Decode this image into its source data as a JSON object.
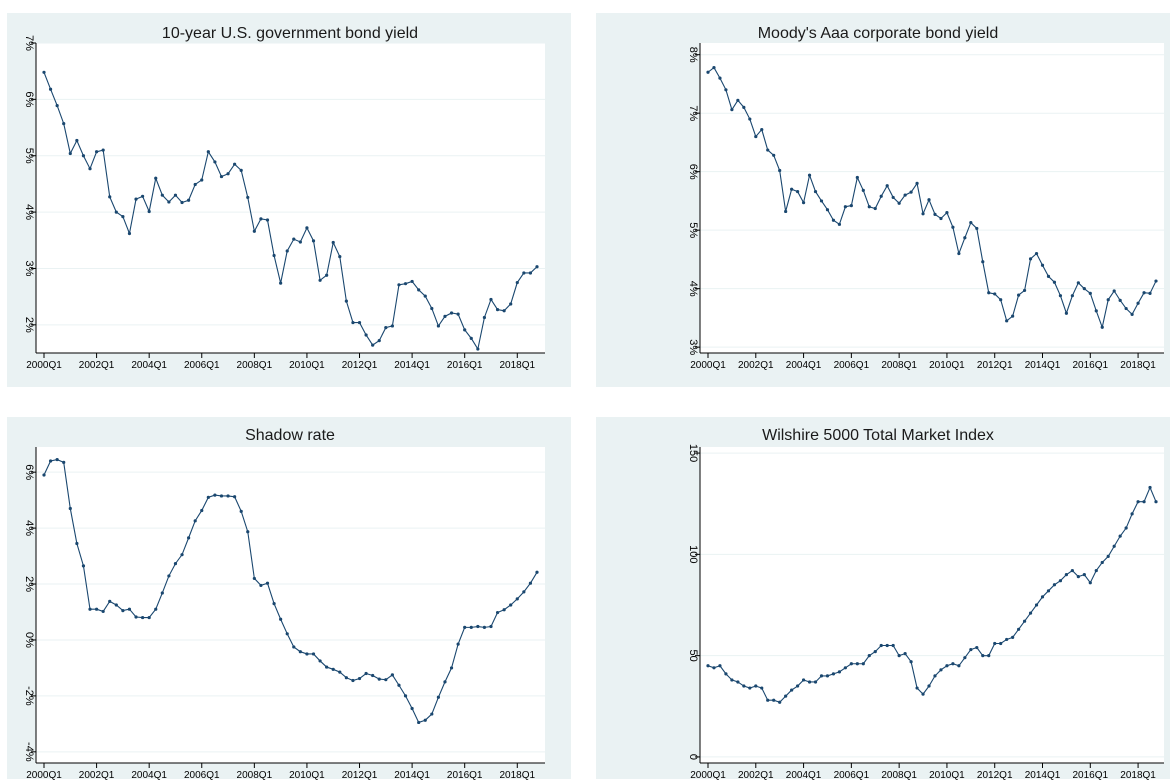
{
  "chart_data": [
    {
      "type": "line",
      "title": "10-year U.S. government bond yield",
      "xlabel": "",
      "ylabel": "",
      "x_start": "2000Q1",
      "x_ticks": [
        "2000Q1",
        "2002Q1",
        "2004Q1",
        "2006Q1",
        "2008Q1",
        "2010Q1",
        "2012Q1",
        "2014Q1",
        "2016Q1",
        "2018Q1"
      ],
      "y_ticks": [
        2,
        3,
        4,
        5,
        6,
        7
      ],
      "y_tick_labels": [
        "2%",
        "3%",
        "4%",
        "5%",
        "6%",
        "7%"
      ],
      "ylim": [
        1.5,
        7.0
      ],
      "grid": true,
      "legend": "none",
      "series": [
        {
          "values": [
            6.48,
            6.18,
            5.89,
            5.57,
            5.04,
            5.27,
            5.0,
            4.77,
            5.07,
            5.1,
            4.27,
            4.0,
            3.92,
            3.62,
            4.23,
            4.28,
            4.01,
            4.6,
            4.3,
            4.18,
            4.3,
            4.17,
            4.21,
            4.49,
            4.57,
            5.07,
            4.89,
            4.63,
            4.68,
            4.85,
            4.74,
            4.26,
            3.66,
            3.88,
            3.86,
            3.23,
            2.74,
            3.31,
            3.52,
            3.47,
            3.72,
            3.49,
            2.79,
            2.88,
            3.46,
            3.21,
            2.42,
            2.04,
            2.04,
            1.82,
            1.64,
            1.72,
            1.95,
            1.98,
            2.71,
            2.73,
            2.77,
            2.62,
            2.51,
            2.29,
            1.98,
            2.15,
            2.21,
            2.19,
            1.91,
            1.76,
            1.57,
            2.13,
            2.45,
            2.27,
            2.25,
            2.37,
            2.75,
            2.92,
            2.92,
            3.03
          ]
        }
      ]
    },
    {
      "type": "line",
      "title": "Moody's Aaa corporate bond yield",
      "xlabel": "",
      "ylabel": "",
      "x_start": "2000Q1",
      "x_ticks": [
        "2000Q1",
        "2002Q1",
        "2004Q1",
        "2006Q1",
        "2008Q1",
        "2010Q1",
        "2012Q1",
        "2014Q1",
        "2016Q1",
        "2018Q1"
      ],
      "y_ticks": [
        3,
        4,
        5,
        6,
        7,
        8
      ],
      "y_tick_labels": [
        "3%",
        "4%",
        "5%",
        "6%",
        "7%",
        "8%"
      ],
      "ylim": [
        2.9,
        8.2
      ],
      "grid": true,
      "legend": "none",
      "series": [
        {
          "values": [
            7.7,
            7.78,
            7.6,
            7.4,
            7.06,
            7.22,
            7.1,
            6.9,
            6.6,
            6.72,
            6.37,
            6.28,
            6.02,
            5.32,
            5.7,
            5.66,
            5.47,
            5.94,
            5.66,
            5.5,
            5.35,
            5.17,
            5.1,
            5.4,
            5.42,
            5.9,
            5.68,
            5.4,
            5.37,
            5.58,
            5.76,
            5.56,
            5.46,
            5.6,
            5.65,
            5.8,
            5.28,
            5.52,
            5.27,
            5.2,
            5.3,
            5.05,
            4.6,
            4.87,
            5.13,
            5.03,
            4.46,
            3.93,
            3.91,
            3.81,
            3.45,
            3.53,
            3.89,
            3.97,
            4.51,
            4.6,
            4.4,
            4.21,
            4.11,
            3.88,
            3.58,
            3.88,
            4.1,
            4.0,
            3.92,
            3.62,
            3.34,
            3.81,
            3.96,
            3.8,
            3.66,
            3.56,
            3.75,
            3.93,
            3.92,
            4.13
          ]
        }
      ]
    },
    {
      "type": "line",
      "title": "Shadow rate",
      "xlabel": "",
      "ylabel": "",
      "x_start": "2000Q1",
      "x_ticks": [
        "2000Q1",
        "2002Q1",
        "2004Q1",
        "2006Q1",
        "2008Q1",
        "2010Q1",
        "2012Q1",
        "2014Q1",
        "2016Q1",
        "2018Q1"
      ],
      "y_ticks": [
        -4,
        -2,
        0,
        2,
        4,
        6
      ],
      "y_tick_labels": [
        "-4%",
        "-2%",
        "0%",
        "2%",
        "4%",
        "6%"
      ],
      "ylim": [
        -4.4,
        6.9
      ],
      "grid": true,
      "legend": "none",
      "series": [
        {
          "values": [
            5.9,
            6.4,
            6.45,
            6.35,
            4.7,
            3.45,
            2.65,
            1.1,
            1.1,
            1.02,
            1.38,
            1.25,
            1.05,
            1.1,
            0.82,
            0.8,
            0.8,
            1.1,
            1.68,
            2.29,
            2.73,
            3.05,
            3.65,
            4.26,
            4.63,
            5.1,
            5.18,
            5.15,
            5.15,
            5.12,
            4.6,
            3.87,
            2.2,
            1.95,
            2.03,
            1.3,
            0.74,
            0.22,
            -0.25,
            -0.42,
            -0.5,
            -0.5,
            -0.75,
            -0.97,
            -1.05,
            -1.15,
            -1.35,
            -1.45,
            -1.38,
            -1.2,
            -1.27,
            -1.4,
            -1.42,
            -1.25,
            -1.62,
            -2.0,
            -2.45,
            -2.95,
            -2.87,
            -2.65,
            -2.05,
            -1.5,
            -1.0,
            -0.15,
            0.45,
            0.45,
            0.48,
            0.45,
            0.48,
            0.98,
            1.08,
            1.25,
            1.47,
            1.72,
            2.03,
            2.42
          ]
        }
      ]
    },
    {
      "type": "line",
      "title": "Wilshire 5000 Total Market Index",
      "xlabel": "",
      "ylabel": "",
      "x_start": "2000Q1",
      "x_ticks": [
        "2000Q1",
        "2002Q1",
        "2004Q1",
        "2006Q1",
        "2008Q1",
        "2010Q1",
        "2012Q1",
        "2014Q1",
        "2016Q1",
        "2018Q1"
      ],
      "y_ticks": [
        0,
        50,
        100,
        150
      ],
      "y_tick_labels": [
        "0",
        "50",
        "100",
        "150"
      ],
      "ylim": [
        -3,
        153
      ],
      "grid": true,
      "legend": "none",
      "series": [
        {
          "values": [
            45,
            44,
            45,
            41,
            38,
            37,
            35,
            34,
            35,
            34,
            28,
            28,
            27,
            30,
            33,
            35,
            38,
            37,
            37,
            40,
            40,
            41,
            42,
            44,
            46,
            46,
            46,
            50,
            52,
            55,
            55,
            55,
            50,
            51,
            47,
            34,
            31,
            35,
            40,
            43,
            45,
            46,
            45,
            49,
            53,
            54,
            50,
            50,
            56,
            56,
            58,
            59,
            63,
            67,
            71,
            75,
            79,
            82,
            85,
            87,
            90,
            92,
            89,
            90,
            86,
            92,
            96,
            99,
            104,
            109,
            113,
            120,
            126,
            126,
            133,
            126
          ]
        }
      ]
    }
  ]
}
